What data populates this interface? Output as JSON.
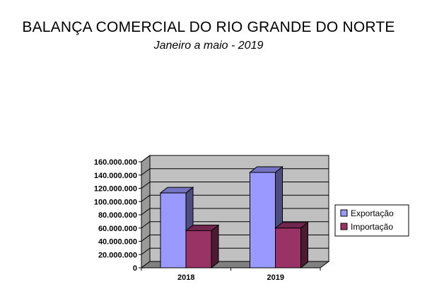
{
  "chart_data": {
    "type": "bar",
    "title": "BALANÇA COMERCIAL DO RIO GRANDE DO NORTE",
    "subtitle": "Janeiro a maio - 2019",
    "categories": [
      "2018",
      "2019"
    ],
    "series": [
      {
        "name": "Exportação",
        "values": [
          113000000,
          144000000
        ],
        "color": "#9999ff"
      },
      {
        "name": "Importação",
        "values": [
          56000000,
          60000000
        ],
        "color": "#993366"
      }
    ],
    "ylim": [
      0,
      160000000
    ],
    "yticks": [
      "0",
      "20.000.000",
      "40.000.000",
      "60.000.000",
      "80.000.000",
      "100.000.000",
      "120.000.000",
      "140.000.000",
      "160.000.000"
    ],
    "grid": true,
    "legend_position": "right",
    "style": "3d"
  }
}
